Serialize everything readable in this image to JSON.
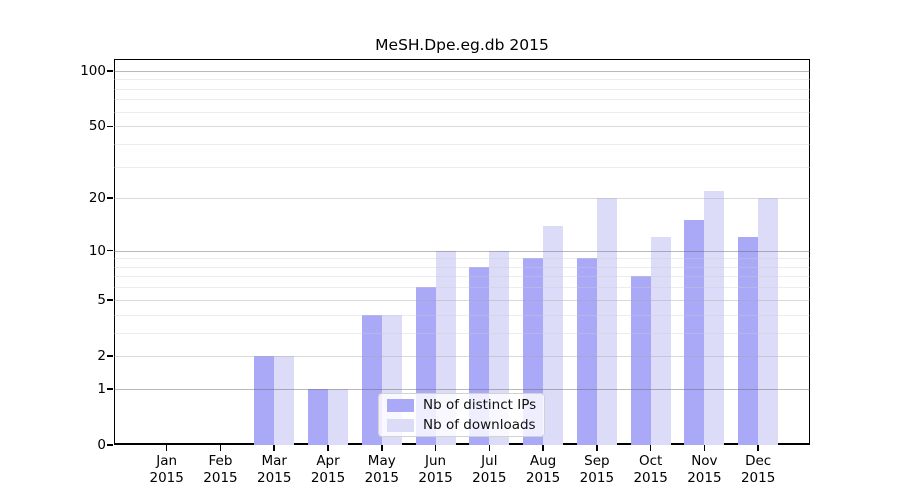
{
  "title": "MeSH.Dpe.eg.db 2015",
  "chart_data": {
    "type": "bar",
    "title": "MeSH.Dpe.eg.db 2015",
    "categories": [
      "Jan",
      "Feb",
      "Mar",
      "Apr",
      "May",
      "Jun",
      "Jul",
      "Aug",
      "Sep",
      "Oct",
      "Nov",
      "Dec"
    ],
    "category_year": "2015",
    "series": [
      {
        "name": "Nb of distinct IPs",
        "color": "#a9a9f7",
        "values": [
          0,
          0,
          2,
          1,
          4,
          6,
          8,
          9,
          9,
          7,
          15,
          12
        ]
      },
      {
        "name": "Nb of downloads",
        "color": "#dcdcf9",
        "values": [
          0,
          0,
          2,
          1,
          4,
          10,
          10,
          14,
          20,
          12,
          22,
          20
        ]
      }
    ],
    "yscale": "log1p",
    "ylim": [
      0,
      116
    ],
    "yticks": [
      0,
      1,
      2,
      5,
      10,
      20,
      50,
      100
    ],
    "decade_gridlines": [
      1,
      10,
      100
    ],
    "mid_gridlines": [
      2,
      5,
      20,
      50
    ],
    "minor_gridlines": [
      3,
      4,
      6,
      7,
      8,
      9,
      30,
      40,
      60,
      70,
      80,
      90
    ],
    "grid": true,
    "legend_position": "lower-center-inside",
    "xlabel": "",
    "ylabel": ""
  },
  "colors": {
    "bar_distinct_ips": "#a9a9f7",
    "bar_downloads": "#dcdcf9",
    "grid_decade": "#b3b3b3",
    "grid_mid": "#dcdcdc",
    "grid_minor": "#eeeeee",
    "axis": "#000000"
  }
}
